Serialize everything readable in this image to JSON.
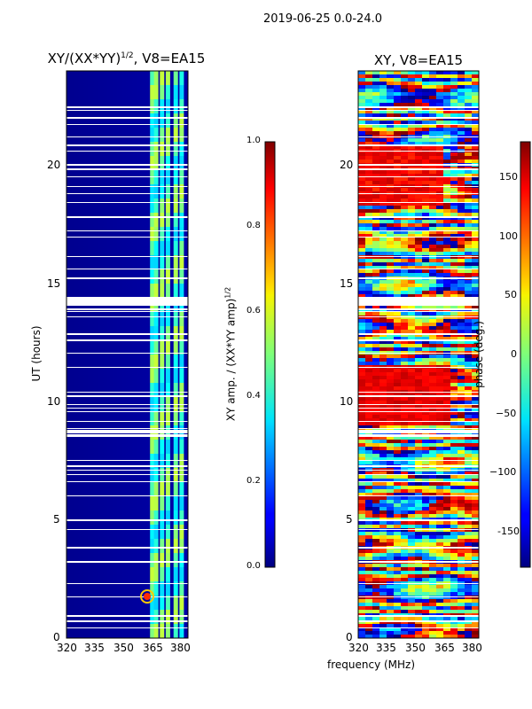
{
  "figure": {
    "suptitle": "2019-06-25 0.0-24.0",
    "xlabel": "frequency (MHz)"
  },
  "chart_data": [
    {
      "type": "heatmap",
      "title_main": "XY/(XX*YY)",
      "title_sup": "1/2",
      "title_rest": ", V8=EA15",
      "xlabel": "",
      "ylabel": "UT (hours)",
      "xlim": [
        320,
        382
      ],
      "ylim": [
        0,
        24
      ],
      "xticks": [
        "320",
        "335",
        "350",
        "365",
        "380"
      ],
      "yticks": [
        "0",
        "5",
        "10",
        "15",
        "20"
      ],
      "colorbar": {
        "label_main": "XY amp. / (XX*YY amp)",
        "label_sup": "1/2",
        "range": [
          0.0,
          1.0
        ],
        "ticks": [
          "0.0",
          "0.2",
          "0.4",
          "0.6",
          "0.8",
          "1.0"
        ],
        "colormap": "jet"
      },
      "description_values": {
        "background_amplitude": 0.05,
        "bright_channels_MHz": [
          364,
          366,
          369,
          372,
          376,
          379
        ],
        "bright_channel_amplitude": 0.45,
        "peak_amplitude": 0.8,
        "peak_time_UT": 1.7,
        "peak_freq_MHz": 364
      }
    },
    {
      "type": "heatmap",
      "title_main": "XY, V8=EA15",
      "xlabel": "",
      "ylabel": "",
      "xlim": [
        320,
        382
      ],
      "ylim": [
        0,
        24
      ],
      "xticks": [
        "320",
        "335",
        "350",
        "365",
        "380"
      ],
      "yticks": [
        "0",
        "5",
        "10",
        "15",
        "20"
      ],
      "colorbar": {
        "label": "phase (deg.)",
        "range": [
          -180,
          180
        ],
        "ticks": [
          "-150",
          "−100",
          "−50",
          "0",
          "50",
          "100",
          "150"
        ],
        "colormap": "jet"
      }
    }
  ]
}
